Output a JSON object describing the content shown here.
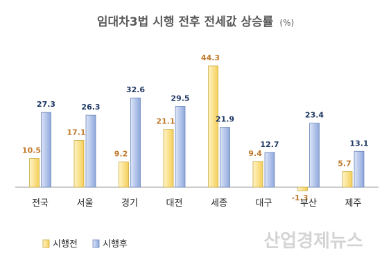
{
  "chart_data": {
    "type": "bar",
    "title": "임대차3법 시행 전후 전세값 상승률",
    "unit": "(%)",
    "categories": [
      "전국",
      "서울",
      "경기",
      "대전",
      "세종",
      "대구",
      "부산",
      "제주"
    ],
    "series": [
      {
        "name": "시행전",
        "values": [
          10.5,
          17.1,
          9.2,
          21.1,
          44.3,
          9.4,
          -1.3,
          5.7
        ],
        "color": "#ffe08a"
      },
      {
        "name": "시행후",
        "values": [
          27.3,
          26.3,
          32.6,
          29.5,
          21.9,
          12.7,
          23.4,
          13.1
        ],
        "color": "#a9bde6"
      }
    ],
    "ylim": [
      -2,
      46
    ],
    "grid": false,
    "legend": "bottom-left"
  },
  "colors": {
    "before_label": "#c0782a",
    "after_label": "#1f3864",
    "before_fill": "#ffe08a",
    "after_fill": "#a9bde6"
  },
  "watermark": "산업경제뉴스"
}
